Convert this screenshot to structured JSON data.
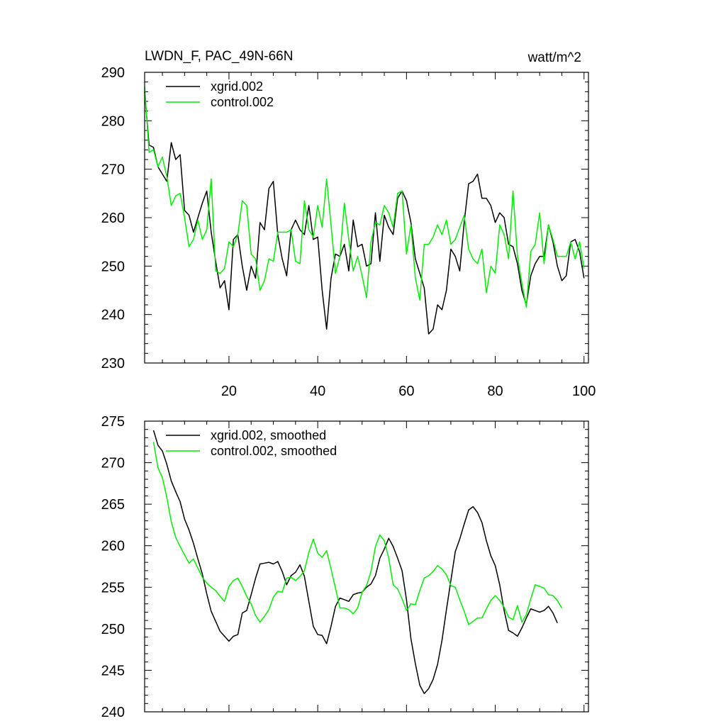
{
  "colors": {
    "series_1": "#000000",
    "series_2": "#00ee00",
    "axes": "#000000",
    "background": "#ffffff"
  },
  "chart_data": [
    {
      "type": "line",
      "title": "LWDN_F, PAC_49N-66N",
      "units": "watt/m^2",
      "xlabel": "",
      "ylabel": "",
      "xlim": [
        1,
        101
      ],
      "ylim": [
        230,
        290
      ],
      "xticks": [
        20,
        40,
        60,
        80,
        100
      ],
      "yticks": [
        230,
        240,
        250,
        260,
        270,
        280,
        290
      ],
      "x_tick_labels_shown": true,
      "legend_position": "top-left",
      "series": [
        {
          "name": "xgrid.002",
          "color": "#000000",
          "values": [
            286,
            275,
            274.5,
            270.5,
            269,
            267.5,
            275.5,
            272,
            273,
            261.5,
            260.5,
            257,
            260,
            263,
            265.5,
            257,
            251,
            245.5,
            247,
            241,
            255.5,
            256.5,
            250,
            245,
            250,
            247.5,
            259,
            257.5,
            266,
            267.5,
            256.5,
            251.5,
            248,
            257.5,
            259.5,
            257.5,
            256.5,
            262.5,
            255.5,
            256,
            245,
            237,
            247.5,
            252.5,
            252,
            254.5,
            249,
            259.5,
            254,
            254.5,
            250,
            250.5,
            261,
            251,
            260.5,
            258,
            256.5,
            264,
            265.5,
            263.5,
            259,
            251.5,
            248.5,
            245.5,
            236,
            237,
            242,
            241,
            245,
            253.5,
            252,
            249,
            259,
            267,
            267.5,
            269,
            264,
            264,
            262.5,
            259,
            261,
            260,
            254.5,
            254,
            250.5,
            245,
            242,
            248,
            250.5,
            252,
            252,
            258.5,
            255,
            250,
            247,
            248,
            255,
            255.5,
            253,
            247.5
          ]
        },
        {
          "name": "control.002",
          "color": "#00ee00",
          "values": [
            287,
            273.5,
            274,
            270.5,
            272.5,
            268.5,
            262.5,
            264.5,
            265,
            260,
            254,
            255.5,
            259.5,
            255.5,
            257.5,
            268,
            249,
            248.5,
            249.5,
            255,
            254,
            256.5,
            263.5,
            262.5,
            252.5,
            251.5,
            245,
            247,
            251.5,
            251,
            257,
            257,
            257,
            257.5,
            251,
            250.5,
            263.5,
            257.5,
            256,
            262.5,
            258,
            268,
            258.5,
            248.5,
            252,
            263,
            255.5,
            249,
            252,
            248,
            243.5,
            255,
            259,
            258.5,
            262.5,
            261,
            258,
            265,
            265.5,
            252.5,
            258.5,
            247.5,
            243,
            254.5,
            254.5,
            256,
            258.5,
            256.5,
            259.5,
            254.5,
            255.5,
            258,
            260.5,
            253.5,
            251.5,
            250.5,
            253.5,
            244.5,
            250,
            248.5,
            258.5,
            256.5,
            251.5,
            265.5,
            252,
            246.5,
            241.5,
            253,
            254.5,
            261,
            250.5,
            258.5,
            255.5,
            252,
            252,
            252,
            255,
            251.5,
            255,
            249.5
          ]
        }
      ]
    },
    {
      "type": "line",
      "title": "",
      "xlabel": "",
      "ylabel": "",
      "xlim": [
        1,
        101
      ],
      "ylim": [
        240,
        275
      ],
      "xticks": [
        20,
        40,
        60,
        80,
        100
      ],
      "yticks": [
        240,
        245,
        250,
        255,
        260,
        265,
        270,
        275
      ],
      "x_tick_labels_shown": false,
      "legend_position": "top-left",
      "series": [
        {
          "name": "xgrid.002, smoothed",
          "color": "#000000",
          "x_start": 3,
          "values": [
            273.9,
            272.1,
            271.4,
            269.8,
            267.8,
            266.5,
            265.3,
            263.2,
            261.9,
            260.3,
            258.4,
            256.6,
            254.2,
            252.1,
            250.9,
            249.7,
            249.1,
            248.5,
            249.1,
            249.3,
            251.9,
            252.2,
            254.1,
            256.1,
            257.8,
            257.9,
            258,
            257.8,
            258.1,
            256.9,
            255.3,
            256.4,
            256.8,
            257.7,
            256.3,
            253.3,
            250.3,
            249.3,
            249.2,
            248.2,
            250.3,
            252.7,
            253.7,
            253.5,
            253.3,
            254.1,
            254.3,
            254.4,
            255,
            255.4,
            256.4,
            258.5,
            259.6,
            260.9,
            259.9,
            258.5,
            257,
            253.5,
            248.8,
            245.8,
            243.2,
            242.2,
            242.8,
            243.9,
            245.7,
            248.6,
            252.3,
            255.8,
            259.3,
            260.8,
            262.6,
            264.3,
            264.7,
            264,
            262.8,
            260.6,
            258.8,
            257.6,
            255.3,
            252.2,
            249.8,
            249.5,
            249.1,
            250.1,
            251.3,
            252.4,
            252.2,
            252,
            252.2,
            252.7,
            251.9,
            250.7
          ]
        },
        {
          "name": "control.002, smoothed",
          "color": "#00ee00",
          "x_start": 3,
          "values": [
            272.5,
            269.4,
            268.2,
            265.8,
            262.9,
            261,
            259.9,
            258.9,
            257.9,
            258.4,
            257.3,
            256.2,
            255.5,
            255,
            254.6,
            253.9,
            253.3,
            255.1,
            255.8,
            256.1,
            255.1,
            253.9,
            253,
            251.6,
            250.8,
            251.5,
            252.3,
            253.8,
            254.5,
            254.4,
            256.1,
            256.2,
            255.8,
            256.3,
            257,
            259.2,
            260.8,
            259.1,
            258.6,
            259.4,
            257.2,
            254.9,
            252.5,
            252.5,
            252.3,
            251.8,
            252.5,
            254.4,
            255.2,
            256.9,
            259.9,
            261.3,
            260.6,
            258.5,
            255.3,
            254.8,
            253.6,
            252.2,
            253,
            252.9,
            254.6,
            256.1,
            256.4,
            256.9,
            257.6,
            257.2,
            256.5,
            255.2,
            255,
            253.5,
            252.1,
            250.5,
            250.9,
            251.3,
            251.3,
            252.4,
            253.4,
            254,
            253.4,
            252.6,
            251.4,
            251.1,
            252.8,
            250.8,
            251.7,
            253.6,
            255.3,
            255.1,
            254.9,
            254.1,
            254,
            253.4,
            252.5
          ]
        }
      ]
    }
  ]
}
